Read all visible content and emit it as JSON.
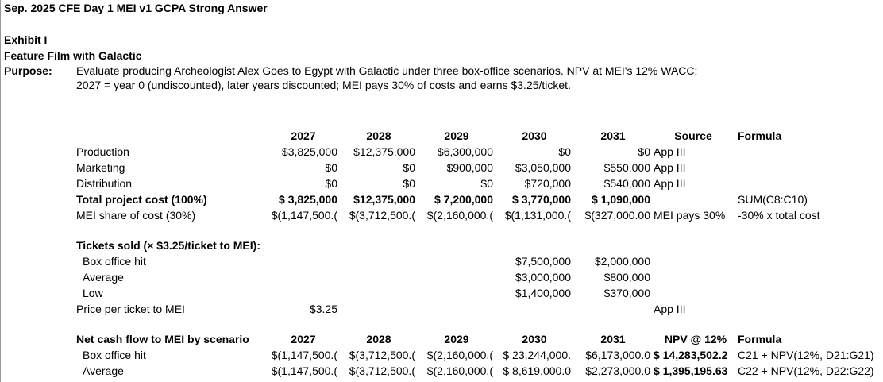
{
  "title": "Sep. 2025 CFE Day 1 MEI v1 GCPA Strong Answer",
  "exhibit": "Exhibit I",
  "subtitle": "Feature Film with Galactic",
  "purpose": {
    "label": "Purpose:",
    "lines": [
      "Evaluate producing Archeologist Alex Goes to Egypt with Galactic under three box-office scenarios. NPV at MEI's 12% WACC;",
      "2027 = year 0 (undiscounted), later years discounted; MEI pays 30% of costs and earns $3.25/ticket."
    ]
  },
  "cost_table": {
    "header": {
      "years": [
        "2027",
        "2028",
        "2029",
        "2030",
        "2031"
      ],
      "source": "Source",
      "formula": "Formula"
    },
    "rows": [
      {
        "label": "Production",
        "values": [
          "$3,825,000",
          "$12,375,000",
          "$6,300,000",
          "$0",
          "$0"
        ],
        "source": "App III"
      },
      {
        "label": "Marketing",
        "values": [
          "$0",
          "$0",
          "$900,000",
          "$3,050,000",
          "$550,000"
        ],
        "source": "App III"
      },
      {
        "label": "Distribution",
        "values": [
          "$0",
          "$0",
          "$0",
          "$720,000",
          "$540,000"
        ],
        "source": "App III"
      },
      {
        "label": "Total project cost (100%)",
        "values": [
          "$ 3,825,000",
          "$12,375,000",
          "$ 7,200,000",
          "$ 3,770,000",
          "$ 1,090,000"
        ],
        "formula": "SUM(C8:C10)"
      },
      {
        "label": "MEI share of cost (30%)",
        "values": [
          "$(1,147,500.(",
          "$(3,712,500.(",
          "$(2,160,000.(",
          "$(1,131,000.(",
          "$(327,000.00"
        ],
        "source": "MEI pays 30%",
        "formula": "-30% x total cost"
      }
    ]
  },
  "tickets": {
    "heading": "Tickets sold (× $3.25/ticket to MEI):",
    "rows": [
      {
        "label": "Box office hit",
        "values": [
          null,
          null,
          null,
          "$7,500,000",
          "$2,000,000"
        ]
      },
      {
        "label": "Average",
        "values": [
          null,
          null,
          null,
          "$3,000,000",
          "$800,000"
        ]
      },
      {
        "label": "Low",
        "values": [
          null,
          null,
          null,
          "$1,400,000",
          "$370,000"
        ]
      },
      {
        "label": "Price per ticket to MEI",
        "values": [
          "$3.25",
          null,
          null,
          null,
          null
        ],
        "source": "App III"
      }
    ]
  },
  "net_cash_flow": {
    "header": {
      "label": "Net cash flow to MEI by scenario",
      "years": [
        "2027",
        "2028",
        "2029",
        "2030",
        "2031"
      ],
      "npv": "NPV @ 12%",
      "formula": "Formula"
    },
    "rows": [
      {
        "label": "Box office hit",
        "values": [
          "$(1,147,500.(",
          "$(3,712,500.(",
          "$(2,160,000.(",
          "$ 23,244,000.",
          "$6,173,000.0"
        ],
        "npv": "$ 14,283,502.2",
        "formula": "C21 + NPV(12%, D21:G21)"
      },
      {
        "label": "Average",
        "values": [
          "$(1,147,500.(",
          "$(3,712,500.(",
          "$(2,160,000.(",
          "$ 8,619,000.0",
          "$2,273,000.0"
        ],
        "npv": "$ 1,395,195.63",
        "formula": "C22 + NPV(12%, D22:G22)"
      }
    ]
  }
}
